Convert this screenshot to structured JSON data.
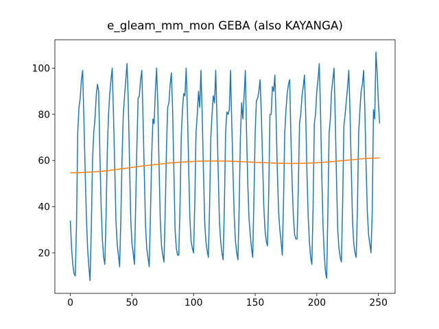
{
  "chart_data": {
    "type": "line",
    "title": "e_gleam_mm_mon GEBA (also KAYANGA)",
    "xlim": [
      -12.55,
      263.55
    ],
    "ylim": [
      2.45,
      112.3
    ],
    "xticks": [
      0,
      50,
      100,
      150,
      200,
      250
    ],
    "yticks": [
      20,
      40,
      60,
      80,
      100
    ],
    "series": [
      {
        "color": "#1f77b4",
        "x": [
          0,
          1,
          2,
          3,
          4,
          5,
          6,
          7,
          8,
          9,
          10,
          11,
          12,
          13,
          14,
          15,
          16,
          17,
          18,
          19,
          20,
          21,
          22,
          23,
          24,
          25,
          26,
          27,
          28,
          29,
          30,
          31,
          32,
          33,
          34,
          35,
          36,
          37,
          38,
          39,
          40,
          41,
          42,
          43,
          44,
          45,
          46,
          47,
          48,
          49,
          50,
          51,
          52,
          53,
          54,
          55,
          56,
          57,
          58,
          59,
          60,
          61,
          62,
          63,
          64,
          65,
          66,
          67,
          68,
          69,
          70,
          71,
          72,
          73,
          74,
          75,
          76,
          77,
          78,
          79,
          80,
          81,
          82,
          83,
          84,
          85,
          86,
          87,
          88,
          89,
          90,
          91,
          92,
          93,
          94,
          95,
          96,
          97,
          98,
          99,
          100,
          101,
          102,
          103,
          104,
          105,
          106,
          107,
          108,
          109,
          110,
          111,
          112,
          113,
          114,
          115,
          116,
          117,
          118,
          119,
          120,
          121,
          122,
          123,
          124,
          125,
          126,
          127,
          128,
          129,
          130,
          131,
          132,
          133,
          134,
          135,
          136,
          137,
          138,
          139,
          140,
          141,
          142,
          143,
          144,
          145,
          146,
          147,
          148,
          149,
          150,
          151,
          152,
          153,
          154,
          155,
          156,
          157,
          158,
          159,
          160,
          161,
          162,
          163,
          164,
          165,
          166,
          167,
          168,
          169,
          170,
          171,
          172,
          173,
          174,
          175,
          176,
          177,
          178,
          179,
          180,
          181,
          182,
          183,
          184,
          185,
          186,
          187,
          188,
          189,
          190,
          191,
          192,
          193,
          194,
          195,
          196,
          197,
          198,
          199,
          200,
          201,
          202,
          203,
          204,
          205,
          206,
          207,
          208,
          209,
          210,
          211,
          212,
          213,
          214,
          215,
          216,
          217,
          218,
          219,
          220,
          221,
          222,
          223,
          224,
          225,
          226,
          227,
          228,
          229,
          230,
          231,
          232,
          233,
          234,
          235,
          236,
          237,
          238,
          239,
          240,
          241,
          242,
          243,
          244,
          245,
          246,
          247,
          248,
          249,
          250,
          251
        ],
        "values": [
          34,
          22,
          15,
          11,
          10,
          32,
          72,
          83,
          87,
          95,
          99,
          78,
          56,
          36,
          22,
          14,
          8,
          30,
          60,
          72,
          78,
          88,
          93,
          90,
          62,
          40,
          26,
          18,
          15,
          36,
          64,
          80,
          89,
          95,
          100,
          80,
          58,
          34,
          24,
          19,
          14,
          35,
          62,
          80,
          88,
          95,
          102,
          86,
          60,
          35,
          24,
          20,
          15,
          40,
          66,
          87,
          88,
          95,
          99,
          78,
          55,
          32,
          22,
          18,
          14,
          36,
          62,
          78,
          76,
          90,
          100,
          84,
          58,
          34,
          23,
          19,
          16,
          38,
          65,
          83,
          85,
          93,
          98,
          82,
          56,
          30,
          22,
          19,
          19,
          40,
          70,
          82,
          89,
          88,
          100,
          82,
          58,
          35,
          25,
          22,
          20,
          42,
          72,
          80,
          90,
          83,
          99,
          80,
          56,
          34,
          25,
          21,
          18,
          40,
          70,
          80,
          88,
          85,
          99,
          78,
          55,
          33,
          25,
          20,
          17,
          40,
          72,
          81,
          80,
          82,
          99,
          76,
          55,
          36,
          25,
          20,
          17,
          40,
          70,
          85,
          78,
          88,
          99,
          72,
          50,
          35,
          28,
          22,
          18,
          44,
          72,
          86,
          87,
          90,
          95,
          80,
          60,
          40,
          30,
          25,
          23,
          46,
          80,
          80,
          92,
          90,
          97,
          78,
          55,
          38,
          30,
          25,
          19,
          42,
          72,
          82,
          89,
          93,
          95,
          70,
          50,
          36,
          28,
          26,
          26,
          48,
          76,
          80,
          88,
          92,
          97,
          80,
          55,
          36,
          25,
          18,
          15,
          40,
          76,
          80,
          90,
          95,
          102,
          82,
          55,
          33,
          20,
          12,
          9,
          38,
          72,
          78,
          90,
          95,
          100,
          78,
          52,
          30,
          22,
          18,
          16,
          42,
          75,
          80,
          86,
          92,
          99,
          80,
          56,
          34,
          24,
          20,
          18,
          40,
          72,
          82,
          90,
          93,
          99,
          82,
          58,
          38,
          28,
          24,
          20,
          38,
          82,
          78,
          107,
          98,
          85,
          76
        ]
      },
      {
        "color": "#ff7f0e",
        "x": [
          0,
          10,
          20,
          30,
          40,
          50,
          60,
          70,
          80,
          90,
          100,
          110,
          120,
          130,
          140,
          150,
          160,
          170,
          180,
          190,
          200,
          210,
          220,
          230,
          240,
          250,
          251
        ],
        "values": [
          54.7,
          54.8,
          55.1,
          55.6,
          56.3,
          57.0,
          57.7,
          58.3,
          58.9,
          59.3,
          59.6,
          59.8,
          59.8,
          59.7,
          59.5,
          59.2,
          59.0,
          58.8,
          58.7,
          58.8,
          59.0,
          59.4,
          59.9,
          60.4,
          60.9,
          61.1,
          61.1
        ]
      }
    ]
  }
}
